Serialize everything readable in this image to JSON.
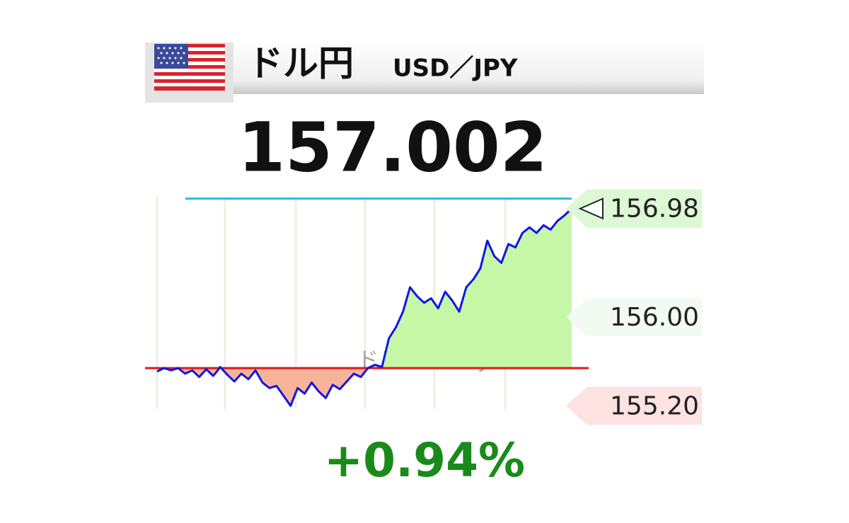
{
  "header": {
    "title": "ドル円",
    "pair": "USD／JPY"
  },
  "price": "157.002",
  "change": "+0.94%",
  "chart_data": {
    "type": "line",
    "watermark": "ドル円 USD/JPY",
    "color": "#1414e6",
    "values": [
      155.51,
      155.54,
      155.52,
      155.54,
      155.49,
      155.52,
      155.46,
      155.53,
      155.47,
      155.55,
      155.48,
      155.42,
      155.49,
      155.44,
      155.52,
      155.41,
      155.36,
      155.38,
      155.29,
      155.2,
      155.36,
      155.31,
      155.41,
      155.33,
      155.27,
      155.39,
      155.35,
      155.42,
      155.49,
      155.46,
      155.54,
      155.57,
      155.55,
      155.81,
      155.91,
      156.05,
      156.27,
      156.19,
      156.13,
      156.17,
      156.08,
      156.23,
      156.15,
      156.05,
      156.27,
      156.34,
      156.44,
      156.69,
      156.55,
      156.49,
      156.66,
      156.63,
      156.76,
      156.81,
      156.76,
      156.83,
      156.79,
      156.87,
      156.92,
      156.98
    ],
    "baseline": 155.54,
    "baseline_color": "#e01818",
    "upper_line": 157.07,
    "upper_line_color": "#2cb8e8",
    "fill_above": "#c6f7a6",
    "fill_below": "#f8b49a",
    "ylim": [
      155.03,
      157.17
    ],
    "yticks": [
      {
        "value": 156.98,
        "label": "156.98"
      },
      {
        "value": 156.0,
        "label": "156.00"
      },
      {
        "value": 155.2,
        "label": "155.20"
      }
    ],
    "ytick_colors": [
      "#dcf8d4",
      "#f2fbf2",
      "#fde2e2"
    ]
  }
}
